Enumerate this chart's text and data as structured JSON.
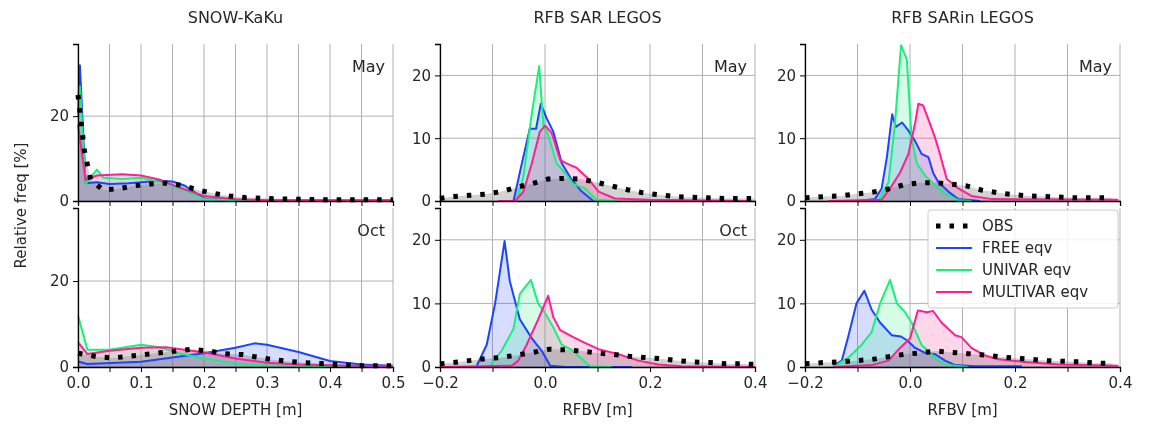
{
  "chart_data": [
    {
      "type": "area",
      "title": "SNOW-KaKu",
      "ylabel": "Relative freq [%]",
      "annotations": [
        "May"
      ],
      "xlim": [
        0,
        0.5
      ],
      "ylim": [
        0,
        37
      ],
      "xticks": [
        {
          "value": 0,
          "label": null
        },
        {
          "value": 0.05,
          "label": null
        },
        {
          "value": 0.1,
          "label": null
        },
        {
          "value": 0.15,
          "label": null
        },
        {
          "value": 0.2,
          "label": null
        },
        {
          "value": 0.25,
          "label": null
        },
        {
          "value": 0.3,
          "label": null
        },
        {
          "value": 0.35,
          "label": null
        },
        {
          "value": 0.4,
          "label": null
        },
        {
          "value": 0.45,
          "label": null
        },
        {
          "value": 0.5,
          "label": null
        }
      ],
      "yticks": [
        0,
        20
      ],
      "grid": true,
      "tick_labels": "y",
      "series": [
        {
          "color": "#000000",
          "line_style": "dotted",
          "x": [
            0,
            0.01,
            0.02,
            0.04,
            0.065,
            0.09,
            0.115,
            0.14,
            0.165,
            0.19,
            0.215,
            0.24,
            0.265,
            0.3,
            0.35,
            0.4,
            0.45,
            0.5
          ],
          "values": [
            25,
            12,
            5,
            2.6,
            2.9,
            3.6,
            4.0,
            4.2,
            3.7,
            2.6,
            1.8,
            1.2,
            0.8,
            0.6,
            0.4,
            0.3,
            0.3,
            0.3
          ]
        },
        {
          "color": "#1a44ff",
          "line_style": "solid",
          "x": [
            0,
            0.003,
            0.012,
            0.03,
            0.05,
            0.08,
            0.1,
            0.13,
            0.15,
            0.17,
            0.2,
            0.25,
            0.3,
            0.4,
            0.5
          ],
          "values": [
            20,
            32,
            4.2,
            4.4,
            4.0,
            4.2,
            4.4,
            4.8,
            4.6,
            3.6,
            0.6,
            0.2,
            0.1,
            0.1,
            0.1
          ]
        },
        {
          "color": "#19f07c",
          "line_style": "solid",
          "x": [
            0,
            0.003,
            0.012,
            0.03,
            0.04,
            0.07,
            0.1,
            0.13,
            0.16,
            0.2,
            0.25,
            0.5
          ],
          "values": [
            20,
            27,
            4,
            7.4,
            5.5,
            5.2,
            5.5,
            4.5,
            3,
            0.5,
            0.2,
            0.1
          ]
        },
        {
          "color": "#ff1f91",
          "line_style": "solid",
          "x": [
            0,
            0.012,
            0.03,
            0.07,
            0.1,
            0.13,
            0.16,
            0.2,
            0.25,
            0.3,
            0.5
          ],
          "values": [
            18,
            5,
            6.0,
            6.3,
            6.0,
            5.0,
            3.2,
            1.2,
            0.4,
            0.2,
            0.2
          ]
        }
      ]
    },
    {
      "type": "area",
      "title": "RFB SAR LEGOS",
      "annotations": [
        "May"
      ],
      "xlim": [
        -0.2,
        0.4
      ],
      "ylim": [
        0,
        25
      ],
      "xticks": [
        {
          "value": -0.2,
          "label": null
        },
        {
          "value": -0.1,
          "label": null
        },
        {
          "value": 0,
          "label": null
        },
        {
          "value": 0.1,
          "label": null
        },
        {
          "value": 0.2,
          "label": null
        },
        {
          "value": 0.3,
          "label": null
        },
        {
          "value": 0.4,
          "label": null
        }
      ],
      "yticks": [
        0,
        10,
        20
      ],
      "grid": true,
      "tick_labels": "y",
      "series": [
        {
          "color": "#000000",
          "line_style": "dotted",
          "x": [
            -0.2,
            -0.175,
            -0.143,
            -0.113,
            -0.083,
            -0.053,
            -0.023,
            0.006,
            0.036,
            0.067,
            0.097,
            0.127,
            0.157,
            0.187,
            0.218,
            0.248,
            0.279,
            0.31,
            0.34,
            0.37,
            0.4
          ],
          "values": [
            0.4,
            0.7,
            0.9,
            1.1,
            1.5,
            2.2,
            2.8,
            3.5,
            3.6,
            3.5,
            3.0,
            2.4,
            1.8,
            1.3,
            1.0,
            0.7,
            0.6,
            0.5,
            0.4,
            0.4,
            0.4
          ]
        },
        {
          "color": "#1a44ff",
          "line_style": "solid",
          "x": [
            -0.06,
            -0.044,
            -0.029,
            -0.017,
            -0.008,
            0.003,
            0.016,
            0.032,
            0.05,
            0.07,
            0.092
          ],
          "values": [
            0,
            6,
            11.5,
            11.5,
            15.5,
            13.2,
            11,
            6,
            3.5,
            1.5,
            0
          ]
        },
        {
          "color": "#19f07c",
          "line_style": "solid",
          "x": [
            -0.054,
            -0.041,
            -0.025,
            -0.011,
            -0.003,
            0.006,
            0.022,
            0.038,
            0.054,
            0.076,
            0.098,
            0.137
          ],
          "values": [
            0,
            4,
            14,
            21.5,
            12,
            10.5,
            6,
            4.5,
            2.7,
            2.0,
            0.2,
            0
          ]
        },
        {
          "color": "#ff1f91",
          "line_style": "solid",
          "x": [
            -0.089,
            -0.057,
            -0.041,
            -0.025,
            -0.01,
            0,
            0.013,
            0.029,
            0.041,
            0.06,
            0.083,
            0.102,
            0.133,
            0.197,
            0.387
          ],
          "values": [
            0,
            0,
            1.5,
            6,
            11,
            12,
            10.8,
            6.5,
            6.0,
            5.3,
            3.5,
            1.5,
            0.4,
            0.2,
            0
          ]
        }
      ]
    },
    {
      "type": "area",
      "title": "RFB SARin LEGOS",
      "annotations": [
        "May"
      ],
      "xlim": [
        -0.2,
        0.4
      ],
      "ylim": [
        0,
        25
      ],
      "xticks": [
        {
          "value": -0.2,
          "label": null
        },
        {
          "value": -0.1,
          "label": null
        },
        {
          "value": 0,
          "label": null
        },
        {
          "value": 0.1,
          "label": null
        },
        {
          "value": 0.2,
          "label": null
        },
        {
          "value": 0.3,
          "label": null
        },
        {
          "value": 0.4,
          "label": null
        }
      ],
      "yticks": [
        0,
        10,
        20
      ],
      "grid": true,
      "tick_labels": "y",
      "series": [
        {
          "color": "#000000",
          "line_style": "dotted",
          "x": [
            -0.2,
            -0.165,
            -0.133,
            -0.103,
            -0.072,
            -0.041,
            -0.011,
            0.018,
            0.048,
            0.078,
            0.108,
            0.138,
            0.168,
            0.199,
            0.229,
            0.26,
            0.29,
            0.32,
            0.352,
            0.384
          ],
          "values": [
            0.5,
            0.7,
            0.8,
            1.1,
            1.4,
            1.9,
            2.6,
            2.9,
            2.9,
            2.7,
            2.4,
            1.7,
            1.3,
            1.0,
            0.8,
            0.7,
            0.6,
            0.5,
            0.5,
            0.5
          ]
        },
        {
          "color": "#1a44ff",
          "line_style": "solid",
          "x": [
            -0.098,
            -0.067,
            -0.054,
            -0.044,
            -0.034,
            -0.027,
            -0.015,
            -0.003,
            0.01,
            0.022,
            0.035,
            0.044,
            0.054,
            0.073,
            0.092,
            0.133
          ],
          "values": [
            0,
            0.3,
            2,
            7,
            13.8,
            11.8,
            12.5,
            11.2,
            9.5,
            7.5,
            7.0,
            4.5,
            3.0,
            1.5,
            0.3,
            0
          ]
        },
        {
          "color": "#19f07c",
          "line_style": "solid",
          "x": [
            -0.06,
            -0.041,
            -0.029,
            -0.017,
            -0.006,
            0.003,
            0.013,
            0.029,
            0.048,
            0.067,
            0.092,
            0.117
          ],
          "values": [
            0,
            3,
            12,
            24.8,
            22.5,
            10,
            6,
            4,
            2.5,
            1.2,
            0.1,
            0
          ]
        },
        {
          "color": "#ff1f91",
          "line_style": "solid",
          "x": [
            -0.156,
            -0.054,
            -0.038,
            -0.019,
            -0.003,
            0.01,
            0.016,
            0.025,
            0.035,
            0.048,
            0.057,
            0.07,
            0.092,
            0.117,
            0.156,
            0.397
          ],
          "values": [
            0,
            0.2,
            2.0,
            4.5,
            7.5,
            12.5,
            15.5,
            15.2,
            13,
            10,
            7.5,
            3.5,
            2.0,
            0.8,
            0.3,
            0.2
          ]
        }
      ]
    },
    {
      "type": "area",
      "xlabel": "SNOW DEPTH [m]",
      "annotations": [
        "Oct"
      ],
      "xlim": [
        0,
        0.5
      ],
      "ylim": [
        0,
        37
      ],
      "xticks": [
        {
          "value": 0,
          "label": "0.0"
        },
        {
          "value": 0.05,
          "label": null
        },
        {
          "value": 0.1,
          "label": "0.1"
        },
        {
          "value": 0.15,
          "label": null
        },
        {
          "value": 0.2,
          "label": "0.2"
        },
        {
          "value": 0.25,
          "label": null
        },
        {
          "value": 0.3,
          "label": "0.3"
        },
        {
          "value": 0.35,
          "label": null
        },
        {
          "value": 0.4,
          "label": "0.4"
        },
        {
          "value": 0.45,
          "label": null
        },
        {
          "value": 0.5,
          "label": "0.5"
        }
      ],
      "yticks": [
        0,
        20
      ],
      "grid": true,
      "series": [
        {
          "color": "#000000",
          "line_style": "dotted",
          "x": [
            0,
            0.03,
            0.055,
            0.08,
            0.105,
            0.13,
            0.18,
            0.21,
            0.23,
            0.26,
            0.28,
            0.31,
            0.335,
            0.36,
            0.385,
            0.45,
            0.5
          ],
          "values": [
            3.2,
            2.4,
            2.1,
            2.5,
            2.9,
            3.3,
            4.1,
            3.7,
            3.1,
            2.9,
            2.4,
            1.7,
            1.3,
            1.0,
            0.8,
            0.3,
            0.3
          ]
        },
        {
          "color": "#1a44ff",
          "line_style": "solid",
          "x": [
            0,
            0.015,
            0.1,
            0.15,
            0.2,
            0.25,
            0.28,
            0.3,
            0.35,
            0.4,
            0.45,
            0.5
          ],
          "values": [
            1.3,
            0.7,
            1.2,
            2.2,
            3.2,
            4.5,
            5.5,
            5.2,
            3.5,
            1.4,
            0.6,
            0.3
          ]
        },
        {
          "color": "#19f07c",
          "line_style": "solid",
          "x": [
            0,
            0.015,
            0.05,
            0.1,
            0.13,
            0.16,
            0.2,
            0.25,
            0.3,
            0.4,
            0.5
          ],
          "values": [
            12,
            4,
            4.0,
            5.2,
            4.6,
            3.2,
            2.0,
            0.8,
            0.4,
            0.2,
            0.1
          ]
        },
        {
          "color": "#ff1f91",
          "line_style": "solid",
          "x": [
            0,
            0.015,
            0.05,
            0.1,
            0.14,
            0.2,
            0.25,
            0.3,
            0.35,
            0.4,
            0.5
          ],
          "values": [
            5.8,
            3.0,
            3.8,
            4.5,
            4.6,
            3.4,
            2.0,
            1.0,
            0.6,
            0.4,
            0.2
          ]
        }
      ]
    },
    {
      "type": "area",
      "xlabel": "RFBV [m]",
      "annotations": [
        "Oct"
      ],
      "xlim": [
        -0.2,
        0.4
      ],
      "ylim": [
        0,
        25
      ],
      "xticks": [
        {
          "value": -0.2,
          "label": "−0.2"
        },
        {
          "value": -0.1,
          "label": null
        },
        {
          "value": 0,
          "label": "0.0"
        },
        {
          "value": 0.1,
          "label": null
        },
        {
          "value": 0.2,
          "label": "0.2"
        },
        {
          "value": 0.3,
          "label": null
        },
        {
          "value": 0.4,
          "label": "0.4"
        }
      ],
      "yticks": [
        0,
        10,
        20
      ],
      "grid": true,
      "series": [
        {
          "color": "#000000",
          "line_style": "dotted",
          "x": [
            -0.2,
            -0.175,
            -0.145,
            -0.113,
            -0.083,
            -0.052,
            -0.022,
            0.008,
            0.038,
            0.069,
            0.099,
            0.13,
            0.16,
            0.19,
            0.222,
            0.253,
            0.283,
            0.313,
            0.344,
            0.375,
            0.4
          ],
          "values": [
            0.5,
            0.7,
            1.0,
            1.3,
            1.5,
            1.9,
            2.3,
            2.8,
            2.7,
            2.5,
            2.2,
            2.0,
            1.7,
            1.5,
            1.3,
            1.0,
            0.8,
            0.7,
            0.5,
            0.5,
            0.4
          ]
        },
        {
          "color": "#1a44ff",
          "line_style": "solid",
          "x": [
            -0.13,
            -0.111,
            -0.095,
            -0.077,
            -0.067,
            -0.048,
            -0.025,
            -0.006,
            0.01,
            0.038,
            0.165
          ],
          "values": [
            0.2,
            3.5,
            10,
            19.8,
            13.5,
            7.5,
            4.5,
            2.5,
            0.2,
            0,
            0
          ]
        },
        {
          "color": "#19f07c",
          "line_style": "solid",
          "x": [
            -0.105,
            -0.083,
            -0.06,
            -0.048,
            -0.027,
            -0.013,
            0,
            0.016,
            0.032,
            0.051,
            0.067,
            0.086,
            0.127
          ],
          "values": [
            0.2,
            2.5,
            6,
            11.5,
            13.7,
            10,
            8.5,
            6.2,
            3.5,
            2.7,
            1.5,
            0.1,
            0
          ]
        },
        {
          "color": "#ff1f91",
          "line_style": "solid",
          "x": [
            -0.2,
            -0.063,
            -0.051,
            -0.035,
            -0.013,
            0.006,
            0.016,
            0.029,
            0.051,
            0.076,
            0.102,
            0.14,
            0.178,
            0.216,
            0.26,
            0.4
          ],
          "values": [
            0,
            0.2,
            1.0,
            3.5,
            7.5,
            11.2,
            7.8,
            5.8,
            4.8,
            3.8,
            2.8,
            2.0,
            1.0,
            0.4,
            0.1,
            0
          ]
        }
      ]
    },
    {
      "type": "area",
      "xlabel": "RFBV [m]",
      "legend": "top right",
      "xlim": [
        -0.2,
        0.4
      ],
      "ylim": [
        0,
        25
      ],
      "xticks": [
        {
          "value": -0.2,
          "label": "−0.2"
        },
        {
          "value": -0.1,
          "label": null
        },
        {
          "value": 0,
          "label": "0.0"
        },
        {
          "value": 0.1,
          "label": null
        },
        {
          "value": 0.2,
          "label": "0.2"
        },
        {
          "value": 0.3,
          "label": null
        },
        {
          "value": 0.4,
          "label": "0.4"
        }
      ],
      "yticks": [
        0,
        10,
        20
      ],
      "grid": true,
      "series": [
        {
          "name": "OBS",
          "color": "#000000",
          "line_style": "dotted",
          "x": [
            -0.2,
            -0.165,
            -0.133,
            -0.103,
            -0.072,
            -0.041,
            -0.011,
            0.019,
            0.05,
            0.079,
            0.11,
            0.14,
            0.171,
            0.2,
            0.23,
            0.262,
            0.293,
            0.324,
            0.354,
            0.386
          ],
          "values": [
            0.5,
            0.7,
            0.8,
            1.0,
            1.2,
            1.6,
            2.0,
            2.2,
            2.5,
            2.3,
            2.1,
            1.9,
            1.6,
            1.4,
            1.2,
            1.0,
            0.9,
            0.8,
            0.6,
            0.6
          ]
        },
        {
          "name": "FREE eqv",
          "color": "#1a44ff",
          "line_style": "solid",
          "x": [
            -0.146,
            -0.13,
            -0.117,
            -0.102,
            -0.087,
            -0.073,
            -0.057,
            -0.035,
            -0.017,
            -0.006,
            0.01,
            0.029,
            0.048,
            0.067,
            0.086,
            0.124,
            0.213
          ],
          "values": [
            0.2,
            1.0,
            5,
            10,
            12,
            9,
            7,
            5,
            4.8,
            4.2,
            3,
            2.2,
            2.0,
            1.0,
            0.3,
            0.1,
            0.1
          ]
        },
        {
          "name": "UNIVAR eqv",
          "color": "#19f07c",
          "line_style": "solid",
          "x": [
            -0.146,
            -0.117,
            -0.092,
            -0.073,
            -0.057,
            -0.038,
            -0.025,
            -0.01,
            0.003,
            0.022,
            0.041,
            0.054,
            0.073,
            0.111
          ],
          "values": [
            0,
            1.5,
            3.5,
            5.5,
            10,
            13.7,
            10,
            8.7,
            7,
            3.5,
            2,
            1,
            0.3,
            0
          ]
        },
        {
          "name": "MULTIVAR eqv",
          "color": "#ff1f91",
          "line_style": "solid",
          "x": [
            -0.146,
            -0.073,
            -0.041,
            -0.019,
            0,
            0.015,
            0.032,
            0.044,
            0.06,
            0.086,
            0.098,
            0.117,
            0.143,
            0.168,
            0.219,
            0.283,
            0.397
          ],
          "values": [
            0,
            0.3,
            1.0,
            3.0,
            4.5,
            8.9,
            8.6,
            8.8,
            7.0,
            5,
            4.7,
            3.0,
            1.8,
            1.2,
            0.8,
            0.4,
            0.2
          ]
        }
      ]
    }
  ]
}
